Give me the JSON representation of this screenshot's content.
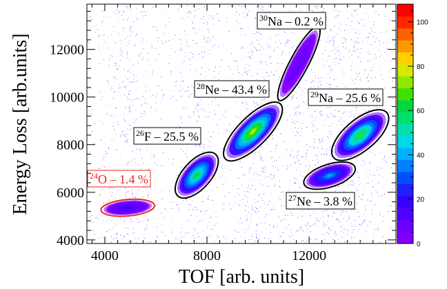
{
  "chart_data": {
    "type": "heatmap",
    "xlabel": "TOF [arb. units]",
    "ylabel": "Energy Loss [arb.units]",
    "xlim": [
      3300,
      15400
    ],
    "ylim": [
      3850,
      13900
    ],
    "x_ticks": [
      4000,
      8000,
      12000
    ],
    "x_tick_labels": [
      "4000",
      "8000",
      "12000"
    ],
    "y_ticks": [
      4000,
      6000,
      8000,
      10000,
      12000
    ],
    "y_tick_labels": [
      "4000",
      "6000",
      "8000",
      "10000",
      "12000"
    ],
    "colorbar": {
      "min": 0,
      "max": 108,
      "ticks": [
        0,
        20,
        40,
        60,
        80,
        100
      ],
      "tick_labels": [
        "0",
        "20",
        "40",
        "60",
        "80",
        "100"
      ],
      "colors": [
        "#7f00ff",
        "#6b00ff",
        "#5200ff",
        "#3800ff",
        "#1f1fff",
        "#0050ff",
        "#0080ff",
        "#00b0ff",
        "#00d8e8",
        "#00e0b0",
        "#00e070",
        "#00d840",
        "#40e000",
        "#90e800",
        "#d8e800",
        "#ffd000",
        "#ff9800",
        "#ff6000",
        "#ff2800",
        "#ff0000"
      ]
    },
    "grid": false,
    "clusters": [
      {
        "label_text": "O – 1.4 %",
        "isotope_mass": "24",
        "center": [
          4900,
          5350
        ],
        "radius": [
          1000,
          560
        ],
        "angle_deg": -5,
        "peak": 18,
        "color": "#ee2222",
        "selected": true
      },
      {
        "label_text": "F – 25.5 %",
        "isotope_mass": "26",
        "center": [
          7600,
          6720
        ],
        "radius": [
          1050,
          950
        ],
        "angle_deg": -48,
        "peak": 62,
        "color": "#000000",
        "selected": false
      },
      {
        "label_text": "Ne – 43.4 %",
        "isotope_mass": "28",
        "center": [
          9800,
          8550
        ],
        "radius": [
          1450,
          1000
        ],
        "angle_deg": -45,
        "peak": 78,
        "color": "#000000",
        "selected": false
      },
      {
        "label_text": "Na – 0.2 %",
        "isotope_mass": "30",
        "center": [
          11600,
          11400
        ],
        "radius": [
          1550,
          620
        ],
        "angle_deg": -62,
        "peak": 10,
        "color": "#000000",
        "selected": false
      },
      {
        "label_text": "Ne – 3.8 %",
        "isotope_mass": "27",
        "center": [
          12800,
          6700
        ],
        "radius": [
          1000,
          770
        ],
        "angle_deg": -18,
        "peak": 40,
        "color": "#000000",
        "selected": false
      },
      {
        "label_text": "Na – 25.6 %",
        "isotope_mass": "29",
        "center": [
          14000,
          8400
        ],
        "radius": [
          1300,
          1050
        ],
        "angle_deg": -40,
        "peak": 66,
        "color": "#000000",
        "selected": false
      }
    ]
  }
}
